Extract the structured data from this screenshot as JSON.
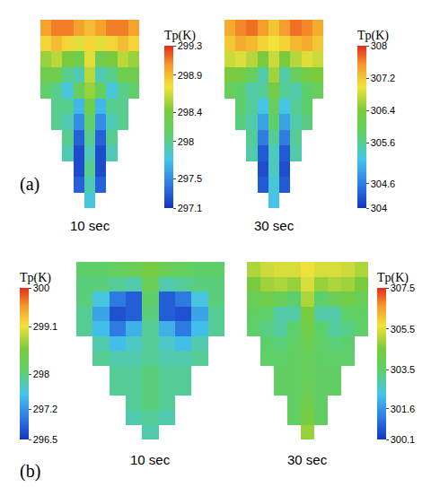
{
  "chart_data": [
    {
      "type": "heatmap",
      "title": "10 sec",
      "annotation": "(a)",
      "colorbar_title": "Tp(K)",
      "colorbar_range": [
        297.1,
        299.3
      ],
      "colorbar_ticks": [
        297.1,
        297.5,
        298,
        298.4,
        298.9,
        299.3
      ],
      "tick_labels": false,
      "cells": [
        [
          299.0,
          299.1,
          299.1,
          299.0,
          298.9,
          299.0,
          299.1,
          299.1,
          299.0
        ],
        [
          298.8,
          298.9,
          298.8,
          298.7,
          298.8,
          298.7,
          298.8,
          298.9,
          298.8
        ],
        [
          298.5,
          298.6,
          298.4,
          298.3,
          298.7,
          298.3,
          298.4,
          298.6,
          298.5
        ],
        [
          298.3,
          298.3,
          298.0,
          297.9,
          298.6,
          297.9,
          298.0,
          298.3,
          298.3
        ],
        [
          298.1,
          298.0,
          297.8,
          298.2,
          298.5,
          298.2,
          297.8,
          298.0,
          298.1
        ],
        [
          null,
          298.0,
          298.0,
          297.7,
          298.3,
          297.7,
          298.0,
          298.0,
          null
        ],
        [
          null,
          298.0,
          297.9,
          297.5,
          298.1,
          297.5,
          297.9,
          298.0,
          null
        ],
        [
          null,
          null,
          298.0,
          297.3,
          298.0,
          297.3,
          298.0,
          null,
          null
        ],
        [
          null,
          null,
          297.9,
          297.2,
          297.9,
          297.2,
          297.9,
          null,
          null
        ],
        [
          null,
          null,
          null,
          297.2,
          298.0,
          297.2,
          null,
          null,
          null
        ],
        [
          null,
          null,
          null,
          297.3,
          297.9,
          297.3,
          null,
          null,
          null
        ],
        [
          null,
          null,
          null,
          null,
          297.8,
          null,
          null,
          null,
          null
        ]
      ]
    },
    {
      "type": "heatmap",
      "title": "30 sec",
      "colorbar_title": "Tp(K)",
      "colorbar_range": [
        304,
        308
      ],
      "colorbar_ticks": [
        304,
        304.6,
        305.6,
        306.4,
        307.2,
        308
      ],
      "tick_labels": false,
      "cells": [
        [
          307.4,
          307.6,
          307.7,
          307.5,
          307.2,
          307.5,
          307.7,
          307.6,
          307.4
        ],
        [
          307.2,
          307.4,
          307.3,
          307.1,
          307.0,
          307.1,
          307.3,
          307.4,
          307.2
        ],
        [
          306.8,
          306.9,
          306.7,
          306.4,
          306.8,
          306.4,
          306.7,
          306.9,
          306.8
        ],
        [
          306.4,
          306.3,
          306.0,
          305.5,
          306.6,
          305.5,
          306.0,
          306.3,
          306.4
        ],
        [
          306.0,
          305.8,
          305.5,
          305.6,
          306.3,
          305.6,
          305.5,
          305.8,
          306.0
        ],
        [
          null,
          305.8,
          305.6,
          305.2,
          306.0,
          305.2,
          305.6,
          305.8,
          null
        ],
        [
          null,
          305.7,
          305.5,
          304.9,
          305.8,
          304.9,
          305.5,
          305.7,
          null
        ],
        [
          null,
          null,
          305.6,
          304.6,
          305.6,
          304.6,
          305.6,
          null,
          null
        ],
        [
          null,
          null,
          305.5,
          304.3,
          305.4,
          304.3,
          305.5,
          null,
          null
        ],
        [
          null,
          null,
          null,
          304.2,
          305.4,
          304.2,
          null,
          null,
          null
        ],
        [
          null,
          null,
          null,
          304.3,
          305.3,
          304.3,
          null,
          null,
          null
        ],
        [
          null,
          null,
          null,
          null,
          305.2,
          null,
          null,
          null,
          null
        ]
      ]
    },
    {
      "type": "heatmap",
      "title": "10 sec",
      "annotation": "(b)",
      "colorbar_title": "Tp(K)",
      "colorbar_range": [
        296.5,
        300
      ],
      "colorbar_ticks": [
        296.5,
        297.2,
        298,
        299.1,
        300
      ],
      "tick_labels": false,
      "cells": [
        [
          298.1,
          298.1,
          298.2,
          298.3,
          298.5,
          298.3,
          298.2,
          298.1,
          298.1
        ],
        [
          298.0,
          298.0,
          297.9,
          297.8,
          298.3,
          297.8,
          297.9,
          298.0,
          298.0
        ],
        [
          298.0,
          297.6,
          297.0,
          296.8,
          298.1,
          296.8,
          297.0,
          297.6,
          298.0
        ],
        [
          297.9,
          297.3,
          296.7,
          296.8,
          298.0,
          296.8,
          296.7,
          297.3,
          297.9
        ],
        [
          297.9,
          297.5,
          297.0,
          297.4,
          297.9,
          297.4,
          297.0,
          297.5,
          297.9
        ],
        [
          null,
          297.8,
          297.5,
          297.7,
          297.9,
          297.7,
          297.5,
          297.8,
          null
        ],
        [
          null,
          297.9,
          297.8,
          297.8,
          297.9,
          297.8,
          297.8,
          297.9,
          null
        ],
        [
          null,
          null,
          297.9,
          297.9,
          298.0,
          297.9,
          297.9,
          null,
          null
        ],
        [
          null,
          null,
          297.9,
          297.9,
          298.0,
          297.9,
          297.9,
          null,
          null
        ],
        [
          null,
          null,
          null,
          297.9,
          298.0,
          297.9,
          null,
          null,
          null
        ],
        [
          null,
          null,
          null,
          297.8,
          297.9,
          297.8,
          null,
          null,
          null
        ],
        [
          null,
          null,
          null,
          null,
          297.8,
          null,
          null,
          null,
          null
        ]
      ]
    },
    {
      "type": "heatmap",
      "title": "30 sec",
      "colorbar_title": "Tp(K)",
      "colorbar_range": [
        300.1,
        307.5
      ],
      "colorbar_ticks": [
        300.1,
        301.6,
        303.5,
        305.5,
        307.5
      ],
      "tick_labels": false,
      "cells": [
        [
          305.0,
          305.3,
          305.4,
          305.4,
          305.6,
          305.4,
          305.4,
          305.3,
          305.0
        ],
        [
          304.5,
          304.9,
          305.0,
          304.8,
          305.4,
          304.8,
          305.0,
          304.9,
          304.5
        ],
        [
          303.9,
          304.2,
          303.9,
          303.4,
          305.0,
          303.4,
          303.9,
          304.2,
          303.9
        ],
        [
          303.6,
          303.5,
          302.9,
          302.9,
          304.5,
          302.9,
          302.9,
          303.5,
          303.6
        ],
        [
          303.5,
          303.2,
          303.0,
          303.4,
          304.2,
          303.4,
          303.0,
          303.2,
          303.5
        ],
        [
          null,
          303.4,
          303.3,
          303.5,
          304.0,
          303.5,
          303.3,
          303.4,
          null
        ],
        [
          null,
          303.5,
          303.5,
          303.6,
          303.8,
          303.6,
          303.5,
          303.5,
          null
        ],
        [
          null,
          null,
          303.6,
          303.6,
          303.8,
          303.6,
          303.6,
          null,
          null
        ],
        [
          null,
          null,
          303.6,
          303.6,
          303.9,
          303.6,
          303.6,
          null,
          null
        ],
        [
          null,
          null,
          null,
          303.6,
          304.1,
          303.6,
          null,
          null,
          null
        ],
        [
          null,
          null,
          null,
          303.6,
          304.4,
          303.6,
          null,
          null,
          null
        ],
        [
          null,
          null,
          null,
          null,
          304.8,
          null,
          null,
          null,
          null
        ]
      ]
    }
  ]
}
